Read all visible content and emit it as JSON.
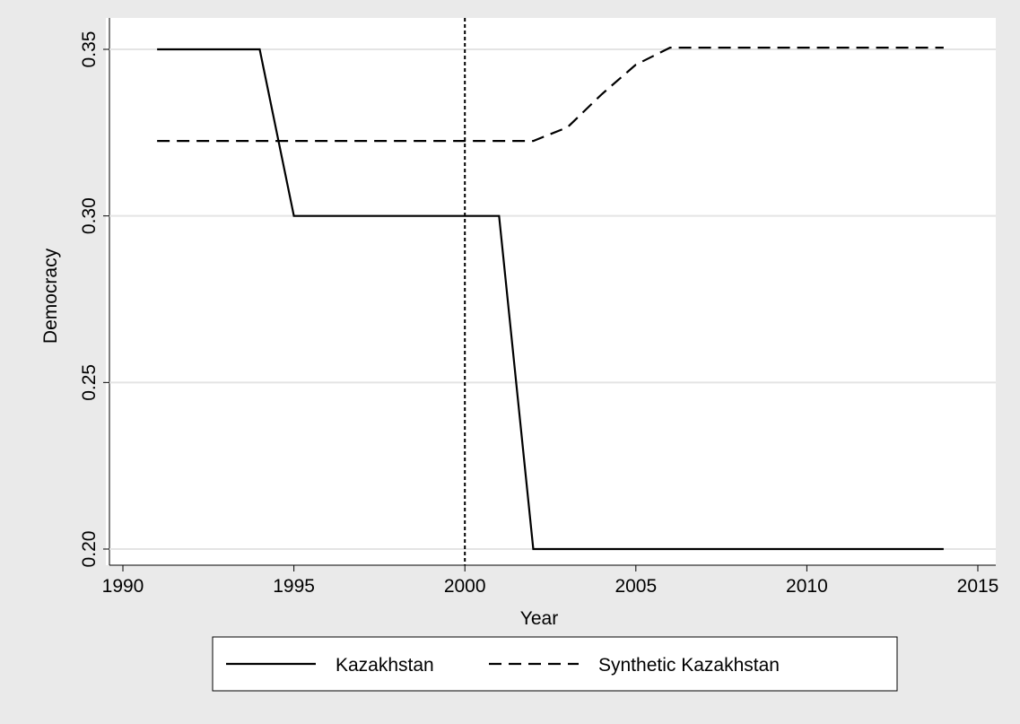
{
  "chart_data": {
    "type": "line",
    "x_label": "Year",
    "y_label": "Democracy",
    "x": [
      1991,
      1992,
      1993,
      1994,
      1995,
      1996,
      1997,
      1998,
      1999,
      2000,
      2001,
      2002,
      2003,
      2004,
      2005,
      2006,
      2007,
      2008,
      2009,
      2010,
      2011,
      2012,
      2013,
      2014
    ],
    "series": [
      {
        "name": "Kazakhstan",
        "color": "#000000",
        "dash": "solid",
        "values": [
          0.35,
          0.35,
          0.35,
          0.35,
          0.3,
          0.3,
          0.3,
          0.3,
          0.3,
          0.3,
          0.3,
          0.2,
          0.2,
          0.2,
          0.2,
          0.2,
          0.2,
          0.2,
          0.2,
          0.2,
          0.2,
          0.2,
          0.2,
          0.2
        ]
      },
      {
        "name": "Synthetic Kazakhstan",
        "color": "#000000",
        "dash": "dashed",
        "values": [
          0.3225,
          0.3225,
          0.3225,
          0.3225,
          0.3225,
          0.3225,
          0.3225,
          0.3225,
          0.3225,
          0.3225,
          0.3225,
          0.3225,
          0.3266,
          0.3365,
          0.3454,
          0.3505,
          0.3505,
          0.3505,
          0.3505,
          0.3505,
          0.3505,
          0.3505,
          0.3505,
          0.3505
        ]
      }
    ],
    "xlim": [
      1990,
      2015
    ],
    "xticks": [
      1990,
      1995,
      2000,
      2005,
      2010,
      2015
    ],
    "ylim": [
      0.2,
      0.35
    ],
    "yticks": [
      {
        "value": 0.2,
        "label": "0.20"
      },
      0.25,
      {
        "value": 0.3,
        "label": "0.30"
      },
      0.35
    ],
    "vline": 2000,
    "grid": true,
    "legend": "bottom"
  }
}
